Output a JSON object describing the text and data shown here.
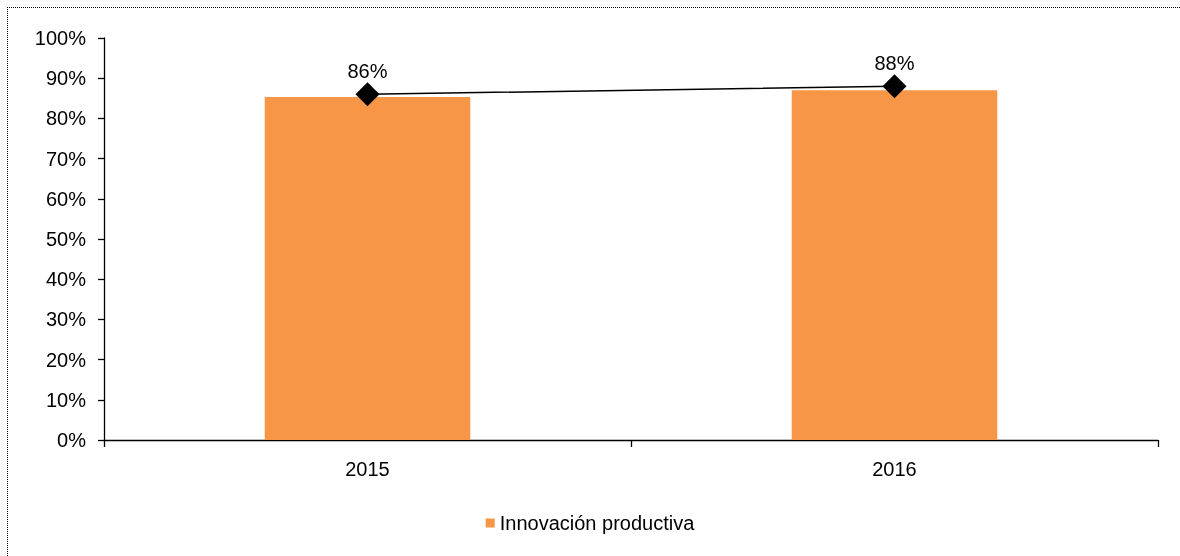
{
  "chart_data": {
    "type": "bar",
    "categories": [
      "2015",
      "2016"
    ],
    "series": [
      {
        "name": "Innovación productiva",
        "color": "#f79646",
        "values": [
          85.3,
          87.0
        ]
      },
      {
        "type": "line",
        "color": "#000000",
        "values": [
          86,
          88
        ],
        "value_labels": [
          "86%",
          "88%"
        ]
      }
    ],
    "ylim": [
      0,
      100
    ],
    "yticks": [
      {
        "value": 0,
        "label": "0%"
      },
      {
        "value": 10,
        "label": "10%"
      },
      {
        "value": 20,
        "label": "20%"
      },
      {
        "value": 30,
        "label": "30%"
      },
      {
        "value": 40,
        "label": "40%"
      },
      {
        "value": 50,
        "label": "50%"
      },
      {
        "value": 60,
        "label": "60%"
      },
      {
        "value": 70,
        "label": "70%"
      },
      {
        "value": 80,
        "label": "80%"
      },
      {
        "value": 90,
        "label": "90%"
      },
      {
        "value": 100,
        "label": "100%"
      }
    ],
    "grid": false,
    "legend": "bottom",
    "marker": "diamond",
    "line_style": "solid"
  }
}
